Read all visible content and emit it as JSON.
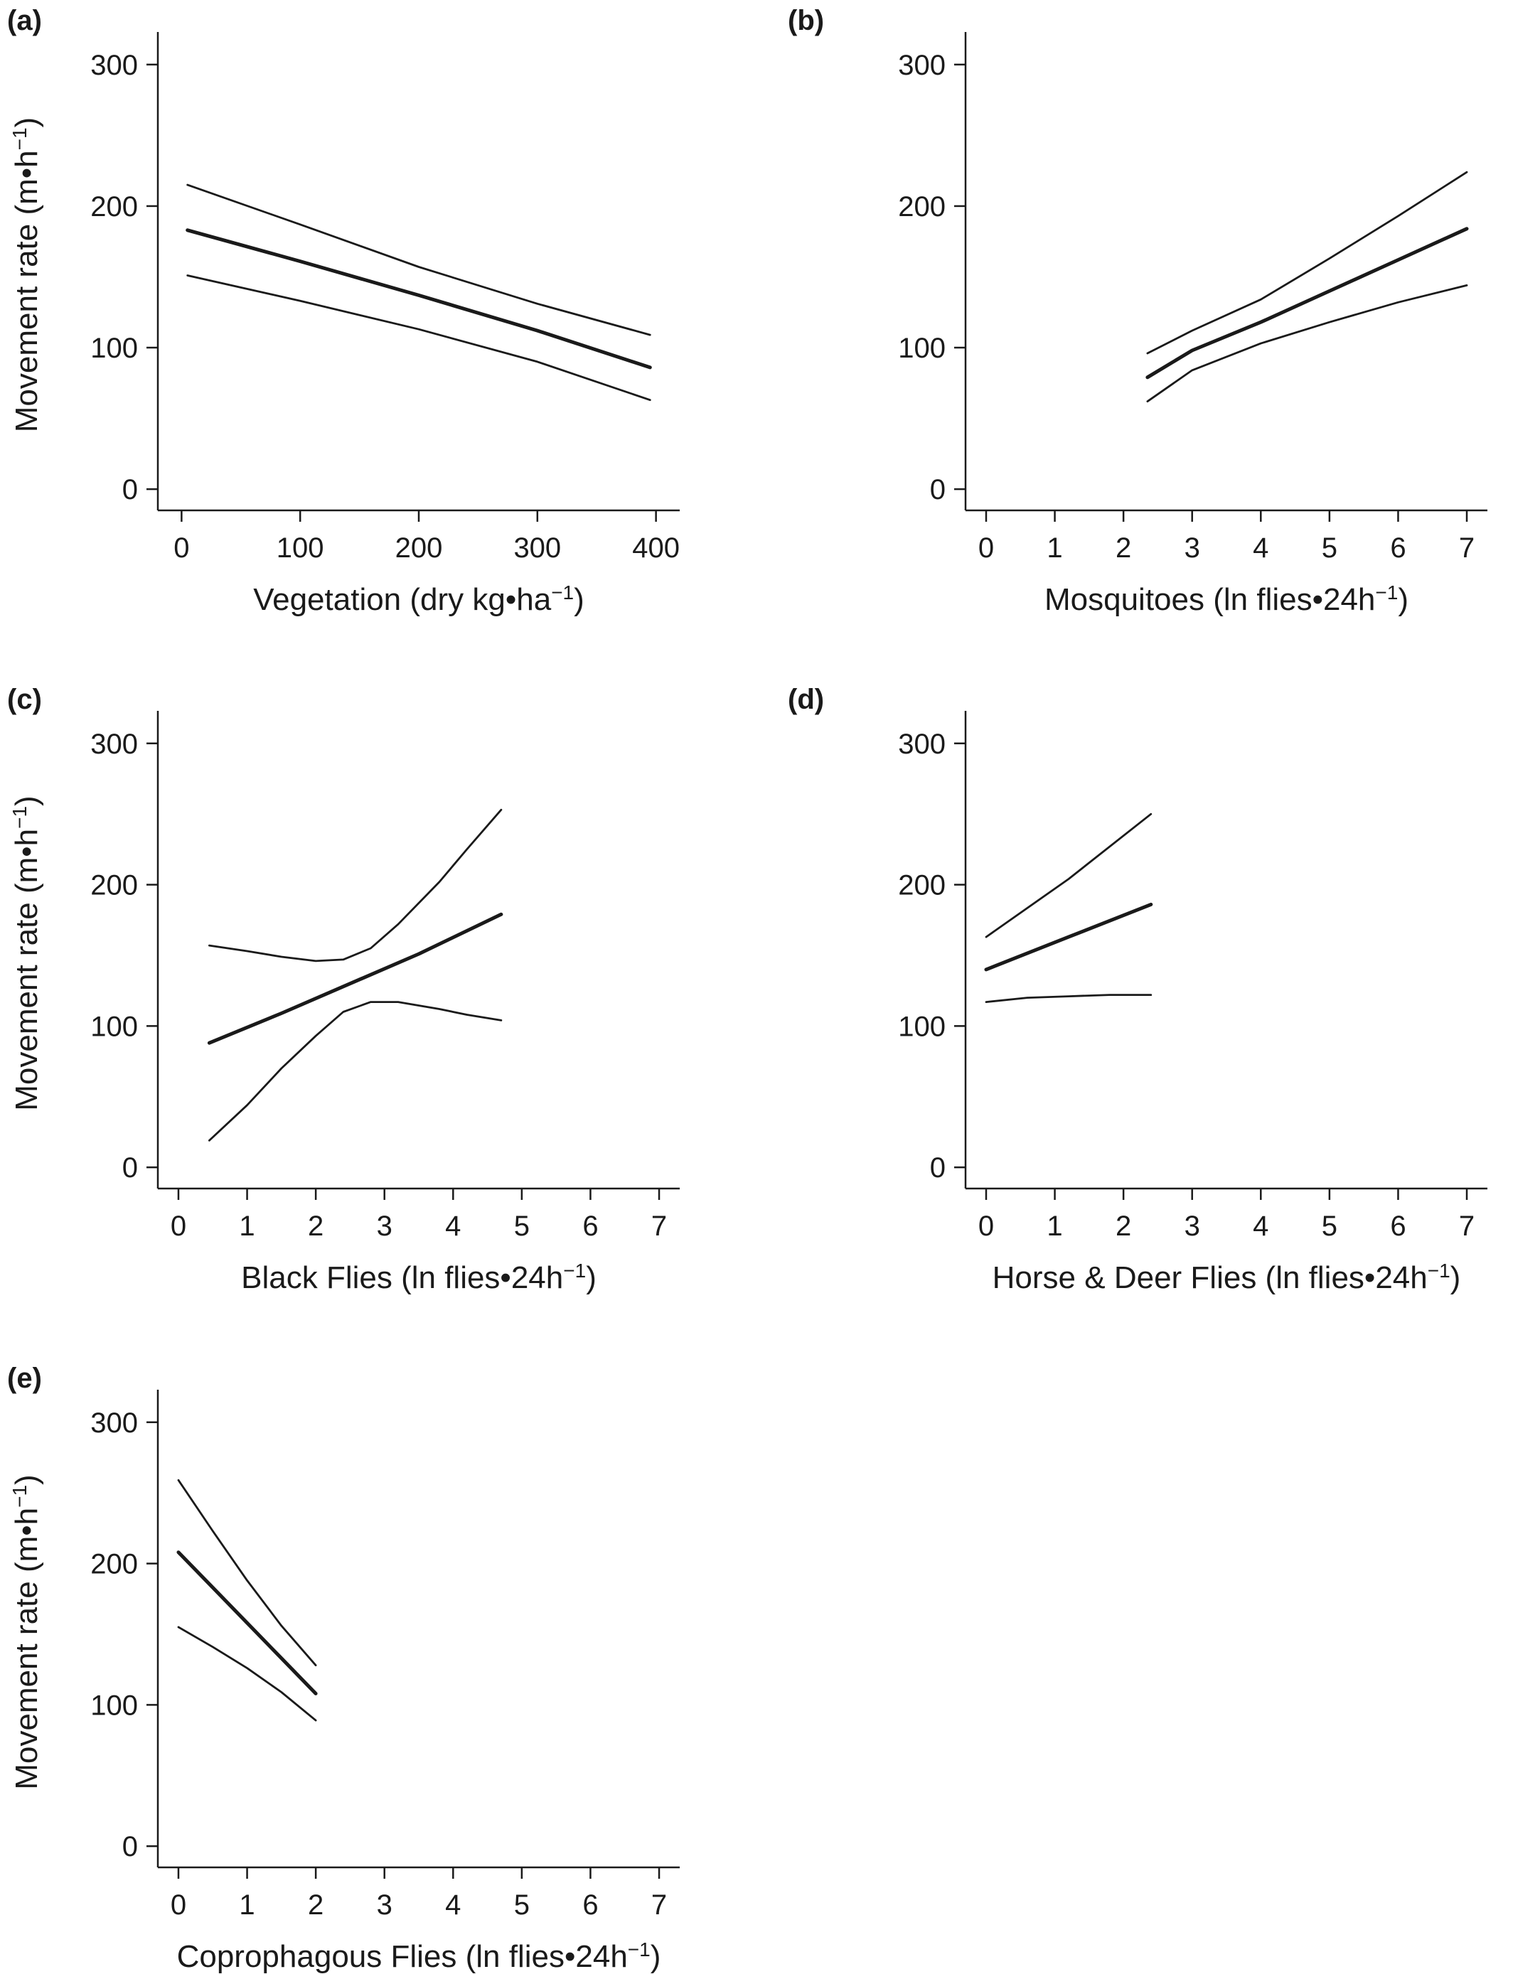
{
  "colors": {
    "line": "#1a1a1a",
    "background": "#ffffff"
  },
  "chart_data": [
    {
      "type": "line",
      "panel_label": "(a)",
      "xlabel": "Vegetation (dry kg•ha",
      "xlabel_sup": "−1",
      "xlabel_after": ")",
      "ylabel": "Movement rate (m•h",
      "ylabel_sup": "−1",
      "ylabel_after": ")",
      "xlim": [
        -20,
        420
      ],
      "ylim": [
        -15,
        318
      ],
      "xticks": [
        0,
        100,
        200,
        300,
        400
      ],
      "yticks": [
        0,
        100,
        200,
        300
      ],
      "grid": false,
      "series": [
        {
          "role": "fit",
          "x": [
            5,
            100,
            200,
            300,
            395
          ],
          "y": [
            183,
            161,
            137,
            112,
            86
          ]
        },
        {
          "role": "ci_upper",
          "x": [
            5,
            100,
            200,
            300,
            395
          ],
          "y": [
            215,
            187,
            157,
            131,
            109
          ]
        },
        {
          "role": "ci_lower",
          "x": [
            5,
            100,
            200,
            300,
            395
          ],
          "y": [
            151,
            133,
            113,
            90,
            63
          ]
        }
      ]
    },
    {
      "type": "line",
      "panel_label": "(b)",
      "xlabel": "Mosquitoes (ln flies•24h",
      "xlabel_sup": "−1",
      "xlabel_after": ")",
      "ylabel": "",
      "xlim": [
        -0.3,
        7.3
      ],
      "ylim": [
        -15,
        318
      ],
      "xticks": [
        0,
        1,
        2,
        3,
        4,
        5,
        6,
        7
      ],
      "yticks": [
        0,
        100,
        200,
        300
      ],
      "grid": false,
      "series": [
        {
          "role": "fit",
          "x": [
            2.35,
            3,
            4,
            5,
            6,
            7
          ],
          "y": [
            79,
            98,
            118,
            140,
            162,
            184
          ]
        },
        {
          "role": "ci_upper",
          "x": [
            2.35,
            3,
            4,
            5,
            6,
            7
          ],
          "y": [
            96,
            112,
            134,
            163,
            193,
            224
          ]
        },
        {
          "role": "ci_lower",
          "x": [
            2.35,
            3,
            4,
            5,
            6,
            7
          ],
          "y": [
            62,
            84,
            103,
            118,
            132,
            144
          ]
        }
      ]
    },
    {
      "type": "line",
      "panel_label": "(c)",
      "xlabel": "Black Flies (ln flies•24h",
      "xlabel_sup": "−1",
      "xlabel_after": ")",
      "ylabel": "Movement rate (m•h",
      "ylabel_sup": "−1",
      "ylabel_after": ")",
      "xlim": [
        -0.3,
        7.3
      ],
      "ylim": [
        -15,
        318
      ],
      "xticks": [
        0,
        1,
        2,
        3,
        4,
        5,
        6,
        7
      ],
      "yticks": [
        0,
        100,
        200,
        300
      ],
      "grid": false,
      "series": [
        {
          "role": "fit",
          "x": [
            0.45,
            1.5,
            2.5,
            3.5,
            4.7
          ],
          "y": [
            88,
            109,
            130,
            151,
            179
          ]
        },
        {
          "role": "ci_upper",
          "x": [
            0.45,
            1,
            1.5,
            2,
            2.4,
            2.8,
            3.2,
            3.8,
            4.2,
            4.7
          ],
          "y": [
            157,
            153,
            149,
            146,
            147,
            155,
            172,
            202,
            225,
            253
          ]
        },
        {
          "role": "ci_lower",
          "x": [
            0.45,
            1,
            1.5,
            2,
            2.4,
            2.8,
            3.2,
            3.8,
            4.2,
            4.7
          ],
          "y": [
            19,
            44,
            70,
            93,
            110,
            117,
            117,
            112,
            108,
            104
          ]
        }
      ]
    },
    {
      "type": "line",
      "panel_label": "(d)",
      "xlabel": "Horse & Deer Flies (ln flies•24h",
      "xlabel_sup": "−1",
      "xlabel_after": ")",
      "ylabel": "",
      "xlim": [
        -0.3,
        7.3
      ],
      "ylim": [
        -15,
        318
      ],
      "xticks": [
        0,
        1,
        2,
        3,
        4,
        5,
        6,
        7
      ],
      "yticks": [
        0,
        100,
        200,
        300
      ],
      "grid": false,
      "series": [
        {
          "role": "fit",
          "x": [
            0,
            1.2,
            2.4
          ],
          "y": [
            140,
            163,
            186
          ]
        },
        {
          "role": "ci_upper",
          "x": [
            0,
            1.2,
            2.4
          ],
          "y": [
            163,
            204,
            250
          ]
        },
        {
          "role": "ci_lower",
          "x": [
            0,
            0.6,
            1.2,
            1.8,
            2.4
          ],
          "y": [
            117,
            120,
            121,
            122,
            122
          ]
        }
      ]
    },
    {
      "type": "line",
      "panel_label": "(e)",
      "xlabel": "Coprophagous Flies (ln flies•24h",
      "xlabel_sup": "−1",
      "xlabel_after": ")",
      "ylabel": "Movement rate (m•h",
      "ylabel_sup": "−1",
      "ylabel_after": ")",
      "xlim": [
        -0.3,
        7.3
      ],
      "ylim": [
        -15,
        318
      ],
      "xticks": [
        0,
        1,
        2,
        3,
        4,
        5,
        6,
        7
      ],
      "yticks": [
        0,
        100,
        200,
        300
      ],
      "grid": false,
      "series": [
        {
          "role": "fit",
          "x": [
            0,
            0.5,
            1,
            1.5,
            2
          ],
          "y": [
            208,
            183,
            158,
            133,
            108
          ]
        },
        {
          "role": "ci_upper",
          "x": [
            0,
            0.5,
            1,
            1.5,
            2
          ],
          "y": [
            259,
            223,
            188,
            156,
            128
          ]
        },
        {
          "role": "ci_lower",
          "x": [
            0,
            0.5,
            1,
            1.5,
            2
          ],
          "y": [
            155,
            141,
            126,
            109,
            89
          ]
        }
      ]
    }
  ]
}
